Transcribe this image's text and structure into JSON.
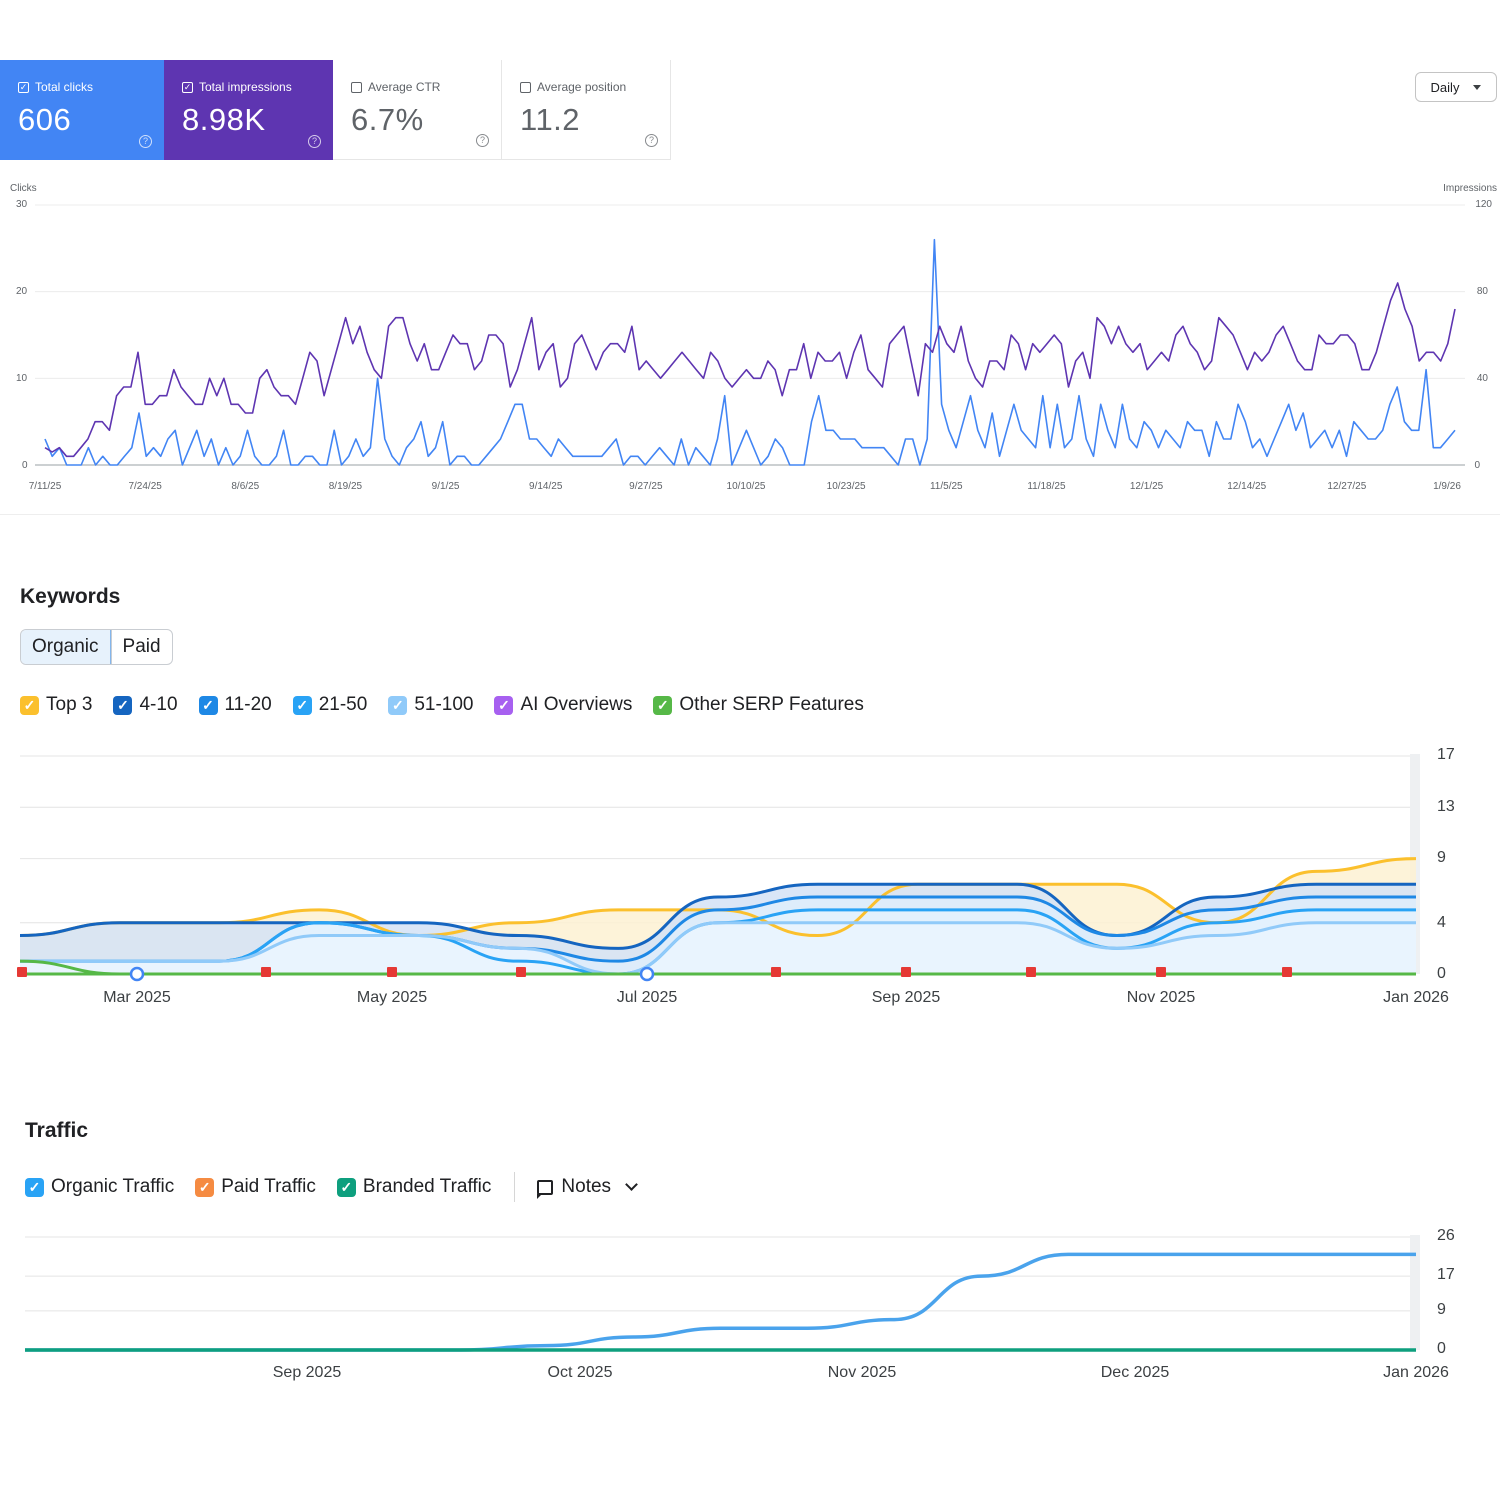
{
  "gsc": {
    "metrics": [
      {
        "label": "Total clicks",
        "value": "606",
        "checked": true,
        "bg": "#4285f4"
      },
      {
        "label": "Total impressions",
        "value": "8.98K",
        "checked": true,
        "bg": "#5e35b1"
      },
      {
        "label": "Average CTR",
        "value": "6.7%",
        "checked": false
      },
      {
        "label": "Average position",
        "value": "11.2",
        "checked": false
      }
    ],
    "granularity": "Daily",
    "chart_data": {
      "type": "line",
      "ylabel_left": "Clicks",
      "ylabel_right": "Impressions",
      "y_left_ticks": [
        "30",
        "20",
        "10",
        "0"
      ],
      "y_right_ticks": [
        "120",
        "80",
        "40",
        "0"
      ],
      "ylim_left": [
        0,
        30
      ],
      "ylim_right": [
        0,
        120
      ],
      "x_ticks": [
        "7/11/25",
        "7/24/25",
        "8/6/25",
        "8/19/25",
        "9/1/25",
        "9/14/25",
        "9/27/25",
        "10/10/25",
        "10/23/25",
        "11/5/25",
        "11/18/25",
        "12/1/25",
        "12/14/25",
        "12/27/25",
        "1/9/26"
      ],
      "series": [
        {
          "name": "Total clicks",
          "color": "#4285f4",
          "axis": "left",
          "values": [
            3,
            1,
            2,
            0,
            0,
            0,
            2,
            0,
            1,
            0,
            0,
            1,
            2,
            6,
            1,
            2,
            1,
            3,
            4,
            0,
            2,
            4,
            1,
            3,
            0,
            2,
            0,
            1,
            4,
            1,
            0,
            0,
            1,
            4,
            0,
            0,
            1,
            1,
            0,
            0,
            4,
            0,
            1,
            3,
            1,
            2,
            10,
            3,
            1,
            0,
            2,
            3,
            5,
            1,
            2,
            5,
            0,
            1,
            1,
            0,
            0,
            1,
            2,
            3,
            5,
            7,
            7,
            3,
            3,
            2,
            1,
            3,
            2,
            1,
            1,
            1,
            1,
            1,
            2,
            3,
            0,
            1,
            1,
            0,
            1,
            2,
            1,
            0,
            3,
            0,
            2,
            1,
            0,
            3,
            8,
            0,
            2,
            4,
            2,
            0,
            1,
            3,
            2,
            0,
            0,
            0,
            5,
            8,
            4,
            4,
            3,
            3,
            3,
            2,
            2,
            2,
            2,
            1,
            0,
            3,
            3,
            0,
            3,
            26,
            7,
            4,
            2,
            5,
            8,
            4,
            2,
            6,
            1,
            4,
            7,
            4,
            3,
            2,
            8,
            2,
            7,
            2,
            3,
            8,
            3,
            1,
            7,
            4,
            2,
            7,
            3,
            2,
            5,
            4,
            2,
            4,
            3,
            2,
            5,
            4,
            4,
            1,
            5,
            3,
            3,
            7,
            5,
            2,
            3,
            1,
            3,
            5,
            7,
            4,
            6,
            2,
            3,
            4,
            2,
            4,
            1,
            5,
            4,
            3,
            3,
            4,
            7,
            9,
            5,
            4,
            4,
            11,
            2,
            2,
            3,
            4
          ]
        },
        {
          "name": "Total impressions",
          "color": "#5e35b1",
          "axis": "left",
          "values": [
            2,
            1.5,
            2,
            1,
            1,
            2,
            3,
            5,
            5,
            4,
            8,
            9,
            9,
            13,
            7,
            7,
            8,
            8,
            11,
            9,
            8,
            7,
            7,
            10,
            8,
            10,
            7,
            7,
            6,
            6,
            10,
            11,
            9,
            8,
            8,
            7,
            10,
            13,
            12,
            8,
            11,
            14,
            17,
            14,
            16,
            13,
            11,
            10,
            16,
            17,
            17,
            14,
            12,
            14,
            11,
            11,
            13,
            15,
            14,
            14,
            11,
            12,
            15,
            15,
            14,
            9,
            11,
            14,
            17,
            11,
            13,
            14,
            9,
            10,
            14,
            15,
            13,
            11,
            13,
            14,
            14,
            13,
            16,
            11,
            12,
            11,
            10,
            11,
            12,
            13,
            12,
            11,
            10,
            13,
            12,
            10,
            9,
            10,
            11,
            10,
            10,
            12,
            11,
            8,
            11,
            11,
            14,
            10,
            13,
            12,
            12,
            13,
            10,
            13,
            15,
            11,
            10,
            9,
            14,
            15,
            16,
            12,
            8,
            14,
            13,
            16,
            14,
            13,
            16,
            12,
            10,
            9,
            12,
            12,
            11,
            15,
            14,
            11,
            14,
            13,
            14,
            15,
            14,
            9,
            12,
            13,
            10,
            17,
            16,
            14,
            16,
            14,
            13,
            14,
            11,
            12,
            13,
            12,
            15,
            16,
            14,
            13,
            11,
            12,
            17,
            16,
            15,
            13,
            11,
            13,
            12,
            13,
            15,
            16,
            14,
            12,
            11,
            11,
            15,
            14,
            14,
            15,
            15,
            14,
            11,
            11,
            13,
            16,
            19,
            21,
            18,
            16,
            12,
            13,
            13,
            12,
            14,
            18
          ]
        }
      ]
    }
  },
  "keywords": {
    "title": "Keywords",
    "tabs": [
      "Organic",
      "Paid"
    ],
    "legend": [
      {
        "label": "Top 3",
        "color": "#fbc02d"
      },
      {
        "label": "4-10",
        "color": "#1565c0"
      },
      {
        "label": "11-20",
        "color": "#1e88e5"
      },
      {
        "label": "21-50",
        "color": "#29a3f5"
      },
      {
        "label": "51-100",
        "color": "#90caf9"
      },
      {
        "label": "AI Overviews",
        "color": "#a760f0"
      },
      {
        "label": "Other SERP Features",
        "color": "#56b847"
      }
    ],
    "chart_data": {
      "type": "area",
      "x_ticks": [
        "Mar 2025",
        "May 2025",
        "Jul 2025",
        "Sep 2025",
        "Nov 2025",
        "Jan 2026"
      ],
      "y_ticks": [
        "17",
        "13",
        "9",
        "4",
        "0"
      ],
      "ylim": [
        0,
        17
      ],
      "series": [
        {
          "name": "Top 3",
          "color": "#fbc02d",
          "values": [
            3,
            4,
            4,
            5,
            3,
            4,
            5,
            5,
            3,
            7,
            7,
            7,
            4,
            8,
            9
          ]
        },
        {
          "name": "4-10",
          "color": "#1565c0",
          "values": [
            3,
            4,
            4,
            4,
            4,
            3,
            2,
            6,
            7,
            7,
            7,
            3,
            6,
            7,
            7
          ]
        },
        {
          "name": "11-20",
          "color": "#1e88e5",
          "values": [
            1,
            1,
            1,
            4,
            3,
            2,
            1,
            5,
            6,
            6,
            6,
            3,
            5,
            6,
            6
          ]
        },
        {
          "name": "21-50",
          "color": "#29a3f5",
          "values": [
            1,
            1,
            1,
            4,
            3,
            1,
            0,
            4,
            5,
            5,
            5,
            2,
            4,
            5,
            5
          ]
        },
        {
          "name": "51-100",
          "color": "#90caf9",
          "values": [
            1,
            1,
            1,
            3,
            3,
            2,
            0,
            4,
            4,
            4,
            4,
            2,
            3,
            4,
            4
          ]
        },
        {
          "name": "Other SERP Features",
          "color": "#56b847",
          "values": [
            1,
            0,
            0,
            0,
            0,
            0,
            0,
            0,
            0,
            0,
            0,
            0,
            0,
            0,
            0
          ]
        }
      ]
    }
  },
  "traffic": {
    "title": "Traffic",
    "legend": [
      {
        "label": "Organic Traffic",
        "color": "#29a3f5"
      },
      {
        "label": "Paid Traffic",
        "color": "#f58b42"
      },
      {
        "label": "Branded Traffic",
        "color": "#0e9f7e"
      }
    ],
    "notes_label": "Notes",
    "chart_data": {
      "type": "line",
      "x_ticks": [
        "Sep 2025",
        "Oct 2025",
        "Nov 2025",
        "Dec 2025",
        "Jan 2026"
      ],
      "y_ticks": [
        "26",
        "17",
        "9",
        "0"
      ],
      "ylim": [
        0,
        26
      ],
      "series": [
        {
          "name": "Organic Traffic",
          "color": "#4aa3ec",
          "values": [
            0,
            0,
            0,
            0,
            0,
            0,
            1,
            3,
            5,
            5,
            7,
            17,
            22,
            22,
            22,
            22,
            22
          ]
        },
        {
          "name": "Branded Traffic",
          "color": "#0e9f7e",
          "values": [
            0,
            0,
            0,
            0,
            0,
            0,
            0,
            0,
            0,
            0,
            0,
            0,
            0,
            0,
            0,
            0,
            0
          ]
        }
      ]
    }
  }
}
